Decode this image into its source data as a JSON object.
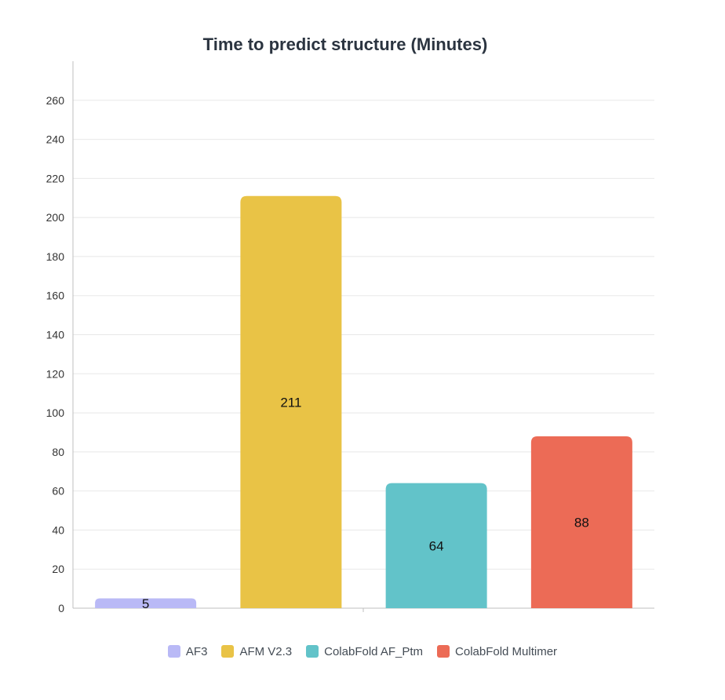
{
  "chart_data": {
    "type": "bar",
    "title": "Time to predict structure (Minutes)",
    "xlabel": "",
    "ylabel": "",
    "ylim": [
      0,
      280
    ],
    "yticks": [
      0,
      20,
      40,
      60,
      80,
      100,
      120,
      140,
      160,
      180,
      200,
      220,
      240,
      260
    ],
    "grid": true,
    "legend_position": "bottom",
    "series": [
      {
        "name": "AF3",
        "value": 5,
        "color": "#b9b9f6"
      },
      {
        "name": "AFM V2.3",
        "value": 211,
        "color": "#e9c346"
      },
      {
        "name": "ColabFold AF_Ptm",
        "value": 64,
        "color": "#62c3c9"
      },
      {
        "name": "ColabFold Multimer",
        "value": 88,
        "color": "#ec6b56"
      }
    ]
  }
}
